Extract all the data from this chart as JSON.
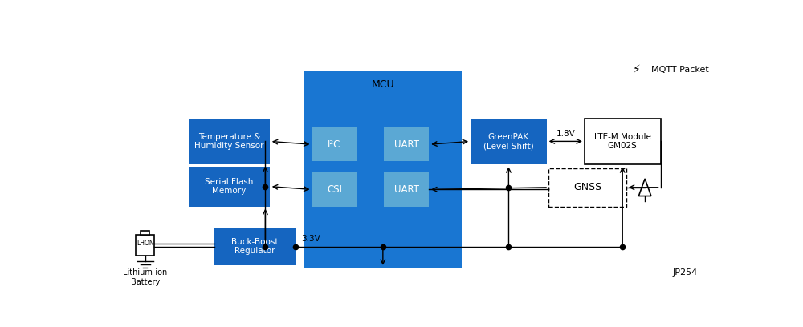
{
  "bg_color": "#ffffff",
  "blue_mcu": "#1976D2",
  "blue_inner": "#5BA8D4",
  "blue_block": "#1565C0",
  "text_white": "#ffffff",
  "text_black": "#000000",
  "jp_label": "JP254",
  "mcu_label": "MCU",
  "i2c_label": "I²C",
  "csi_label": "CSI",
  "uart1_label": "UART",
  "uart2_label": "UART",
  "temp_label": "Temperature &\nHumidity Sensor",
  "flash_label": "Serial Flash\nMemory",
  "greenpak_label": "GreenPAK\n(Level Shift)",
  "ltem_label": "LTE-M Module\nGM02S",
  "gnss_label": "GNSS",
  "buck_label": "Buck-Boost\nRegulator",
  "battery_label": "Lithium-ion\nBattery",
  "mqtt_label": "MQTT Packet",
  "v33_label": "3.3V",
  "v18_label": "1.8V"
}
